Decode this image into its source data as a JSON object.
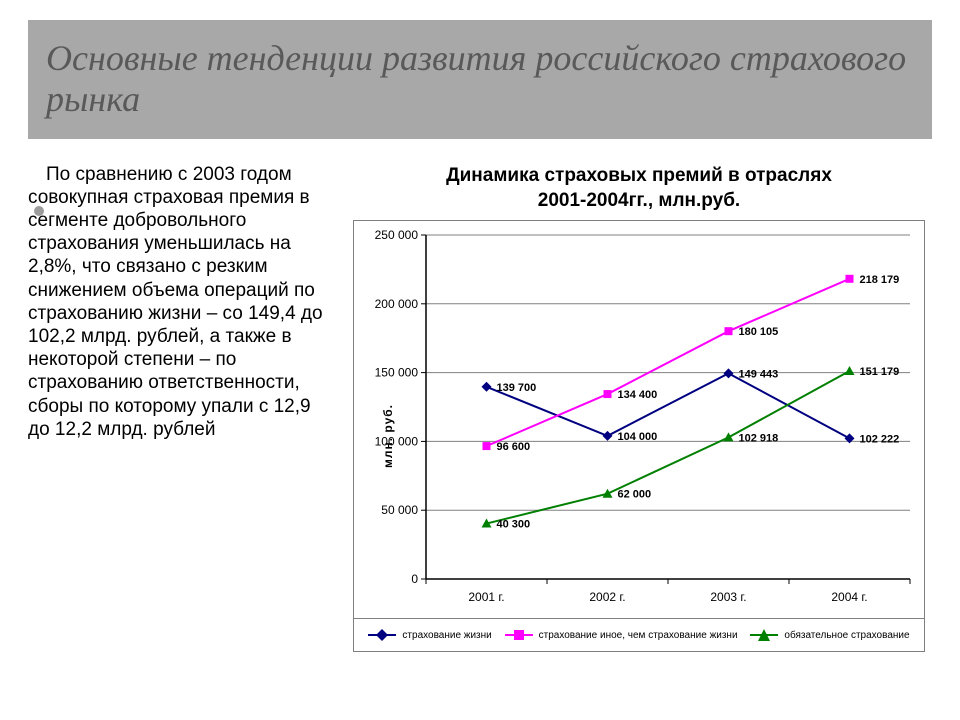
{
  "slide": {
    "title": "Основные тенденции развития российского страхового рынка",
    "body_text": "По сравнению с 2003 годом совокупная страховая премия в сегменте добровольного страхования уменьшилась на 2,8%, что связано с резким снижением объема операций по страхованию жизни – со 149,4 до 102,2 млрд. рублей, а также в некоторой степени – по страхованию ответственности, сборы по которому упали с 12,9 до 12,2 млрд. рублей",
    "title_bg": "#a8a8a8",
    "title_color": "#595959",
    "title_fontsize_pt": 28,
    "bullet_color": "#9c9c9c"
  },
  "chart": {
    "type": "line",
    "title_line1": "Динамика страховых премий в отраслях",
    "title_line2": "2001-2004гг., млн.руб.",
    "title_fontsize_pt": 14,
    "y_axis_label": "млн. руб.",
    "y_axis_label_fontsize_pt": 9,
    "categories": [
      "2001 г.",
      "2002 г.",
      "2003 г.",
      "2004 г."
    ],
    "ylim": [
      0,
      250000
    ],
    "ytick_step": 50000,
    "yticks": [
      "0",
      "50 000",
      "100 000",
      "150 000",
      "200 000",
      "250 000"
    ],
    "grid_color": "#808080",
    "axis_color": "#000000",
    "background_color": "#ffffff",
    "label_font_size": 11,
    "tick_font_size": 12,
    "data_label_font_size": 11,
    "marker_size": 8,
    "line_width": 2,
    "series": [
      {
        "name": "страхование жизни",
        "color": "#000080",
        "marker": "diamond",
        "values": [
          139700,
          104000,
          149443,
          102222
        ],
        "labels": [
          "139 700",
          "104 000",
          "149 443",
          "102 222"
        ]
      },
      {
        "name": "страхование иное, чем страхование жизни",
        "color": "#ff00ff",
        "marker": "square",
        "values": [
          96600,
          134400,
          180105,
          218179
        ],
        "labels": [
          "96 600",
          "134 400",
          "180 105",
          "218 179"
        ]
      },
      {
        "name": "обязательное страхование",
        "color": "#008000",
        "marker": "triangle",
        "values": [
          40300,
          62000,
          102918,
          151179
        ],
        "labels": [
          "40 300",
          "62 000",
          "102 918",
          "151 179"
        ]
      }
    ]
  }
}
